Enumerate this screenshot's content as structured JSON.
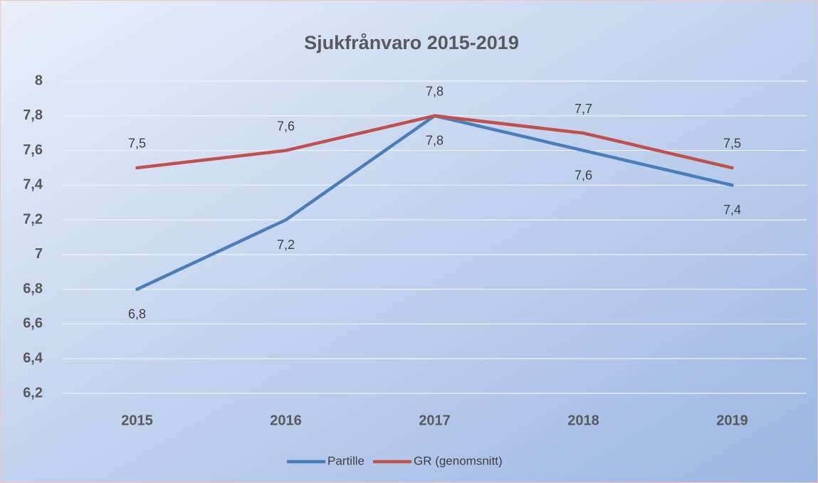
{
  "chart_data": {
    "type": "line",
    "title": "Sjukfrånvaro 2015-2019",
    "categories": [
      "2015",
      "2016",
      "2017",
      "2018",
      "2019"
    ],
    "series": [
      {
        "name": "Partille",
        "color": "#4a7ebb",
        "values": [
          6.8,
          7.2,
          7.8,
          7.6,
          7.4
        ],
        "value_labels": [
          "6,8",
          "7,2",
          "7,8",
          "7,6",
          "7,4"
        ]
      },
      {
        "name": "GR (genomsnitt)",
        "color": "#c0504d",
        "values": [
          7.5,
          7.6,
          7.8,
          7.7,
          7.5
        ],
        "value_labels": [
          "7,5",
          "7,6",
          "7,8",
          "7,7",
          "7,5"
        ]
      }
    ],
    "ylim": [
      6.2,
      8
    ],
    "yticks": [
      {
        "value": 6.2,
        "label": "6,2"
      },
      {
        "value": 6.4,
        "label": "6,4"
      },
      {
        "value": 6.6,
        "label": "6,6"
      },
      {
        "value": 6.8,
        "label": "6,8"
      },
      7,
      {
        "value": 7.2,
        "label": "7,2"
      },
      {
        "value": 7.4,
        "label": "7,4"
      },
      {
        "value": 7.6,
        "label": "7,6"
      },
      {
        "value": 7.8,
        "label": "7,8"
      },
      8
    ],
    "grid": true,
    "legend": "bottom"
  }
}
